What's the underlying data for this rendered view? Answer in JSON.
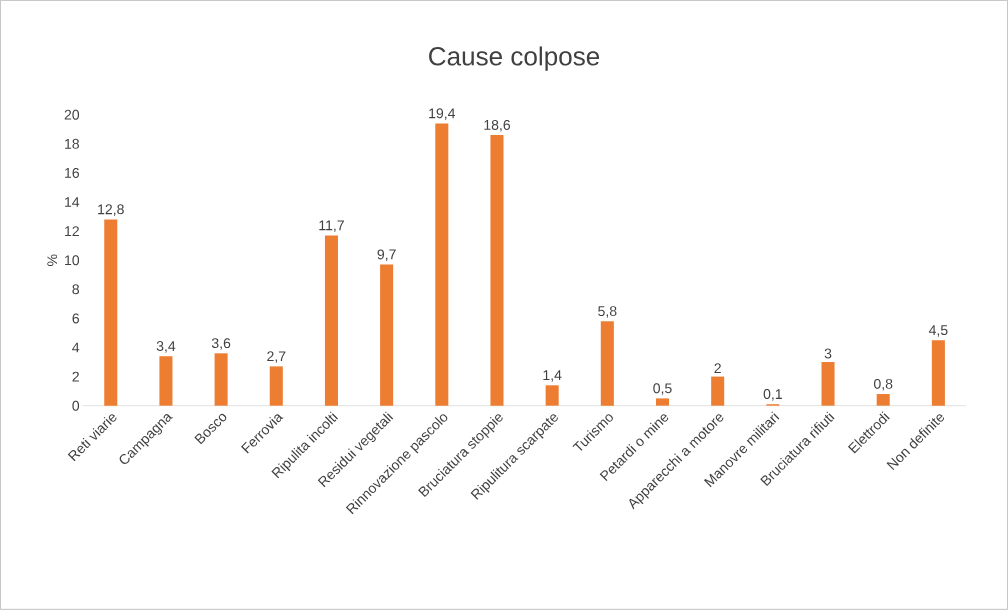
{
  "chart_data": {
    "type": "bar",
    "title": "Cause colpose",
    "ylabel": "%",
    "categories": [
      "Reti viarie",
      "Campagna",
      "Bosco",
      "Ferrovia",
      "Ripulita incolti",
      "Residui vegetali",
      "Rinnovazione pascolo",
      "Bruciatura stoppie",
      "Ripulitura scarpate",
      "Turismo",
      "Petardi o mine",
      "Apparecchi a motore",
      "Manovre militari",
      "Bruciatura rifiuti",
      "Elettrodi",
      "Non definite"
    ],
    "values": [
      12.8,
      3.4,
      3.6,
      2.7,
      11.7,
      9.7,
      19.4,
      18.6,
      1.4,
      5.8,
      0.5,
      2,
      0.1,
      3,
      0.8,
      4.5
    ],
    "value_labels": [
      "12,8",
      "3,4",
      "3,6",
      "2,7",
      "11,7",
      "9,7",
      "19,4",
      "18,6",
      "1,4",
      "5,8",
      "0,5",
      "2",
      "0,1",
      "3",
      "0,8",
      "4,5"
    ],
    "color": "#ed7d31",
    "ylim": [
      0,
      20
    ],
    "yticks": [
      0,
      2,
      4,
      6,
      8,
      10,
      12,
      14,
      16,
      18,
      20
    ],
    "grid": false
  }
}
